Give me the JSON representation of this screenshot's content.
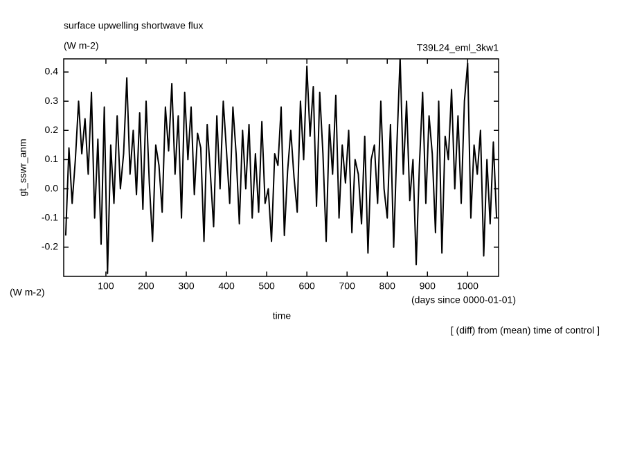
{
  "chart_data": {
    "type": "line",
    "title": "surface upwelling shortwave flux",
    "subtitle": "(W m-2)",
    "annotation": "T39L24_eml_3kw1",
    "ylabel": "gt_sswr_anm",
    "yunits": "(W m-2)",
    "xlabel": "time",
    "xunits": "(days since 0000-01-01)",
    "note": "[ (diff) from (mean) time of control ]",
    "xlim": [
      -5,
      1077
    ],
    "ylim": [
      -0.3,
      0.445
    ],
    "xticks": [
      100,
      200,
      300,
      400,
      500,
      600,
      700,
      800,
      900,
      1000
    ],
    "yticks": [
      -0.2,
      -0.1,
      {
        "value": 0,
        "label": "0.0"
      },
      0.1,
      0.2,
      0.3,
      0.4
    ],
    "x": [
      0,
      8,
      16,
      24,
      32,
      40,
      48,
      56,
      64,
      72,
      80,
      88,
      96,
      104,
      112,
      120,
      128,
      136,
      144,
      152,
      160,
      168,
      176,
      184,
      192,
      200,
      208,
      216,
      224,
      232,
      240,
      248,
      256,
      264,
      272,
      280,
      288,
      296,
      304,
      312,
      320,
      328,
      336,
      344,
      352,
      360,
      368,
      376,
      384,
      392,
      400,
      408,
      416,
      424,
      432,
      440,
      448,
      456,
      464,
      472,
      480,
      488,
      496,
      504,
      512,
      520,
      528,
      536,
      544,
      552,
      560,
      568,
      576,
      584,
      592,
      600,
      608,
      616,
      624,
      632,
      640,
      648,
      656,
      664,
      672,
      680,
      688,
      696,
      704,
      712,
      720,
      728,
      736,
      744,
      752,
      760,
      768,
      776,
      784,
      792,
      800,
      808,
      816,
      824,
      832,
      840,
      848,
      856,
      864,
      872,
      880,
      888,
      896,
      904,
      912,
      920,
      928,
      936,
      944,
      952,
      960,
      968,
      976,
      984,
      992,
      1000,
      1008,
      1016,
      1024,
      1032,
      1040,
      1048,
      1056,
      1064,
      1072
    ],
    "series": [
      {
        "color": "#000000",
        "values": [
          -0.16,
          0.14,
          -0.05,
          0.1,
          0.3,
          0.12,
          0.24,
          0.05,
          0.33,
          -0.1,
          0.17,
          -0.19,
          0.28,
          -0.29,
          0.15,
          -0.05,
          0.25,
          0.0,
          0.12,
          0.38,
          0.05,
          0.2,
          -0.02,
          0.26,
          -0.07,
          0.3,
          0.02,
          -0.18,
          0.15,
          0.08,
          -0.08,
          0.28,
          0.13,
          0.36,
          0.05,
          0.25,
          -0.1,
          0.33,
          0.1,
          0.28,
          -0.02,
          0.19,
          0.14,
          -0.18,
          0.22,
          0.05,
          -0.13,
          0.25,
          0.0,
          0.3,
          0.13,
          -0.05,
          0.28,
          0.12,
          -0.12,
          0.2,
          0.0,
          0.22,
          -0.1,
          0.12,
          -0.08,
          0.23,
          -0.05,
          0.0,
          -0.18,
          0.12,
          0.08,
          0.28,
          -0.16,
          0.06,
          0.2,
          0.04,
          -0.08,
          0.3,
          0.1,
          0.42,
          0.18,
          0.35,
          -0.06,
          0.33,
          0.12,
          -0.18,
          0.22,
          0.05,
          0.32,
          -0.1,
          0.15,
          0.02,
          0.2,
          -0.15,
          0.1,
          0.05,
          -0.12,
          0.18,
          -0.22,
          0.1,
          0.15,
          -0.05,
          0.3,
          0.0,
          -0.1,
          0.22,
          -0.2,
          0.15,
          0.45,
          0.05,
          0.3,
          -0.04,
          0.1,
          -0.26,
          0.08,
          0.33,
          -0.05,
          0.25,
          0.12,
          -0.15,
          0.3,
          -0.22,
          0.18,
          0.1,
          0.34,
          0.0,
          0.25,
          -0.05,
          0.3,
          0.43,
          -0.1,
          0.15,
          0.05,
          0.2,
          -0.23,
          0.1,
          -0.12,
          0.16,
          -0.1
        ]
      }
    ]
  }
}
